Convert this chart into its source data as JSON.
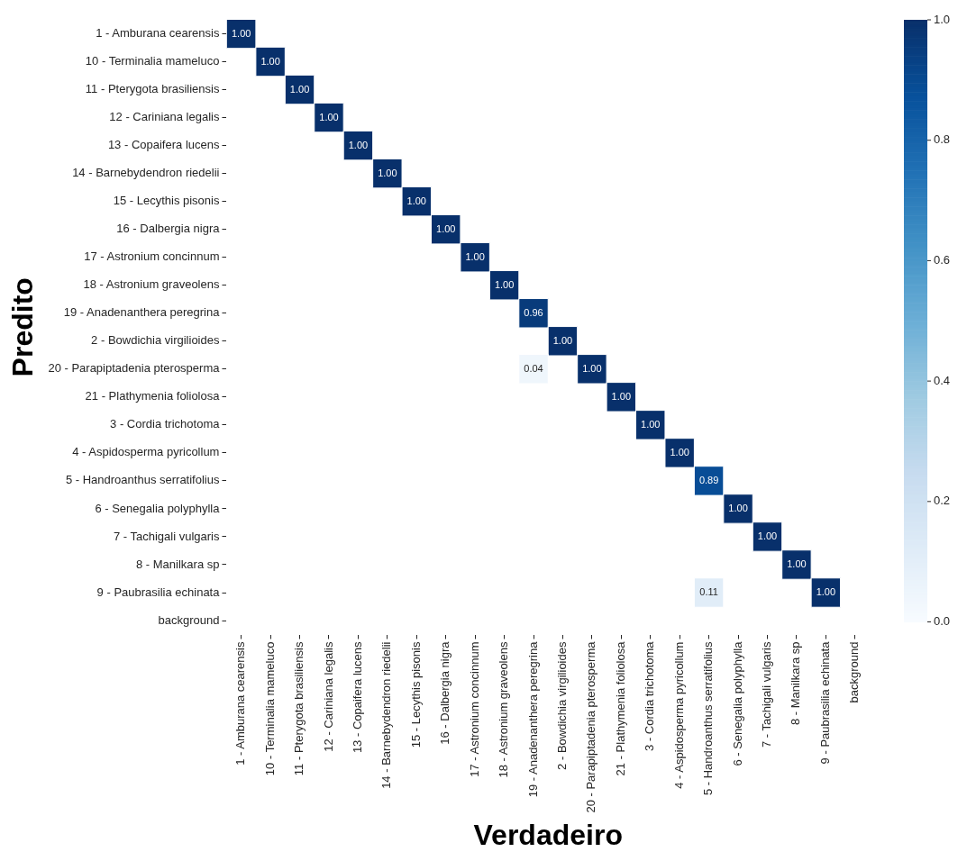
{
  "chart_data": {
    "type": "heatmap",
    "xlabel": "Verdadeiro",
    "ylabel": "Predito",
    "categories": [
      "1 - Amburana cearensis",
      "10 - Terminalia mameluco",
      "11 - Pterygota brasiliensis",
      "12 - Cariniana legalis",
      "13 - Copaifera lucens",
      "14 - Barnebydendron riedelii",
      "15 - Lecythis pisonis",
      "16 - Dalbergia nigra",
      "17 - Astronium concinnum",
      "18 - Astronium graveolens",
      "19 - Anadenanthera peregrina",
      "2 - Bowdichia virgilioides",
      "20 - Parapiptadenia pterosperma",
      "21 - Plathymenia foliolosa",
      "3 - Cordia trichotoma",
      "4 - Aspidosperma pyricollum",
      "5 - Handroanthus serratifolius",
      "6 - Senegalia polyphylla",
      "7 - Tachigali vulgaris",
      "8 - Manilkara sp",
      "9 - Paubrasilia echinata",
      "background"
    ],
    "y_categories": [
      "1 - Amburana cearensis",
      "10 - Terminalia mameluco",
      "11 - Pterygota brasiliensis",
      "12 - Cariniana legalis",
      "13 - Copaifera lucens",
      "14 - Barnebydendron riedelii",
      "15 - Lecythis pisonis",
      "16 - Dalbergia nigra",
      "17 - Astronium concinnum",
      "18 - Astronium graveolens",
      "19 - Anadenanthera peregrina",
      "2 - Bowdichia virgilioides",
      "20 - Parapiptadenia pterosperma",
      "21 - Plathymenia foliolosa",
      "3 - Cordia trichotoma",
      "4 - Aspidosperma pyricollum",
      "5 - Handroanthus serratifolius",
      "6 - Senegalia polyphylla",
      "7 - Tachigali vulgaris",
      "8 - Manilkara sp",
      "9 - Paubrasilia echinata",
      "background"
    ],
    "cells": [
      [
        1,
        null,
        null,
        null,
        null,
        null,
        null,
        null,
        null,
        null,
        null,
        null,
        null,
        null,
        null,
        null,
        null,
        null,
        null,
        null,
        null,
        null
      ],
      [
        null,
        1,
        null,
        null,
        null,
        null,
        null,
        null,
        null,
        null,
        null,
        null,
        null,
        null,
        null,
        null,
        null,
        null,
        null,
        null,
        null,
        null
      ],
      [
        null,
        null,
        1,
        null,
        null,
        null,
        null,
        null,
        null,
        null,
        null,
        null,
        null,
        null,
        null,
        null,
        null,
        null,
        null,
        null,
        null,
        null
      ],
      [
        null,
        null,
        null,
        1,
        null,
        null,
        null,
        null,
        null,
        null,
        null,
        null,
        null,
        null,
        null,
        null,
        null,
        null,
        null,
        null,
        null,
        null
      ],
      [
        null,
        null,
        null,
        null,
        1,
        null,
        null,
        null,
        null,
        null,
        null,
        null,
        null,
        null,
        null,
        null,
        null,
        null,
        null,
        null,
        null,
        null
      ],
      [
        null,
        null,
        null,
        null,
        null,
        1,
        null,
        null,
        null,
        null,
        null,
        null,
        null,
        null,
        null,
        null,
        null,
        null,
        null,
        null,
        null,
        null
      ],
      [
        null,
        null,
        null,
        null,
        null,
        null,
        1,
        null,
        null,
        null,
        null,
        null,
        null,
        null,
        null,
        null,
        null,
        null,
        null,
        null,
        null,
        null
      ],
      [
        null,
        null,
        null,
        null,
        null,
        null,
        null,
        1,
        null,
        null,
        null,
        null,
        null,
        null,
        null,
        null,
        null,
        null,
        null,
        null,
        null,
        null
      ],
      [
        null,
        null,
        null,
        null,
        null,
        null,
        null,
        null,
        1,
        null,
        null,
        null,
        null,
        null,
        null,
        null,
        null,
        null,
        null,
        null,
        null,
        null
      ],
      [
        null,
        null,
        null,
        null,
        null,
        null,
        null,
        null,
        null,
        1,
        null,
        null,
        null,
        null,
        null,
        null,
        null,
        null,
        null,
        null,
        null,
        null
      ],
      [
        null,
        null,
        null,
        null,
        null,
        null,
        null,
        null,
        null,
        null,
        0.96,
        null,
        null,
        null,
        null,
        null,
        null,
        null,
        null,
        null,
        null,
        null
      ],
      [
        null,
        null,
        null,
        null,
        null,
        null,
        null,
        null,
        null,
        null,
        null,
        1,
        null,
        null,
        null,
        null,
        null,
        null,
        null,
        null,
        null,
        null
      ],
      [
        null,
        null,
        null,
        null,
        null,
        null,
        null,
        null,
        null,
        null,
        0.04,
        null,
        1,
        null,
        null,
        null,
        null,
        null,
        null,
        null,
        null,
        null
      ],
      [
        null,
        null,
        null,
        null,
        null,
        null,
        null,
        null,
        null,
        null,
        null,
        null,
        null,
        1,
        null,
        null,
        null,
        null,
        null,
        null,
        null,
        null
      ],
      [
        null,
        null,
        null,
        null,
        null,
        null,
        null,
        null,
        null,
        null,
        null,
        null,
        null,
        null,
        1,
        null,
        null,
        null,
        null,
        null,
        null,
        null
      ],
      [
        null,
        null,
        null,
        null,
        null,
        null,
        null,
        null,
        null,
        null,
        null,
        null,
        null,
        null,
        null,
        1,
        null,
        null,
        null,
        null,
        null,
        null
      ],
      [
        null,
        null,
        null,
        null,
        null,
        null,
        null,
        null,
        null,
        null,
        null,
        null,
        null,
        null,
        null,
        null,
        0.89,
        null,
        null,
        null,
        null,
        null
      ],
      [
        null,
        null,
        null,
        null,
        null,
        null,
        null,
        null,
        null,
        null,
        null,
        null,
        null,
        null,
        null,
        null,
        null,
        1,
        null,
        null,
        null,
        null
      ],
      [
        null,
        null,
        null,
        null,
        null,
        null,
        null,
        null,
        null,
        null,
        null,
        null,
        null,
        null,
        null,
        null,
        null,
        null,
        1,
        null,
        null,
        null
      ],
      [
        null,
        null,
        null,
        null,
        null,
        null,
        null,
        null,
        null,
        null,
        null,
        null,
        null,
        null,
        null,
        null,
        null,
        null,
        null,
        1,
        null,
        null
      ],
      [
        null,
        null,
        null,
        null,
        null,
        null,
        null,
        null,
        null,
        null,
        null,
        null,
        null,
        null,
        null,
        null,
        0.11,
        null,
        null,
        null,
        1,
        null
      ],
      [
        null,
        null,
        null,
        null,
        null,
        null,
        null,
        null,
        null,
        null,
        null,
        null,
        null,
        null,
        null,
        null,
        null,
        null,
        null,
        null,
        null,
        null
      ]
    ],
    "cell_labels": [
      [
        "1.00",
        null,
        null,
        null,
        null,
        null,
        null,
        null,
        null,
        null,
        null,
        null,
        null,
        null,
        null,
        null,
        null,
        null,
        null,
        null,
        null,
        null
      ],
      [
        null,
        "1.00",
        null,
        null,
        null,
        null,
        null,
        null,
        null,
        null,
        null,
        null,
        null,
        null,
        null,
        null,
        null,
        null,
        null,
        null,
        null,
        null
      ],
      [
        null,
        null,
        "1.00",
        null,
        null,
        null,
        null,
        null,
        null,
        null,
        null,
        null,
        null,
        null,
        null,
        null,
        null,
        null,
        null,
        null,
        null,
        null
      ],
      [
        null,
        null,
        null,
        "1.00",
        null,
        null,
        null,
        null,
        null,
        null,
        null,
        null,
        null,
        null,
        null,
        null,
        null,
        null,
        null,
        null,
        null,
        null
      ],
      [
        null,
        null,
        null,
        null,
        "1.00",
        null,
        null,
        null,
        null,
        null,
        null,
        null,
        null,
        null,
        null,
        null,
        null,
        null,
        null,
        null,
        null,
        null
      ],
      [
        null,
        null,
        null,
        null,
        null,
        "1.00",
        null,
        null,
        null,
        null,
        null,
        null,
        null,
        null,
        null,
        null,
        null,
        null,
        null,
        null,
        null,
        null
      ],
      [
        null,
        null,
        null,
        null,
        null,
        null,
        "1.00",
        null,
        null,
        null,
        null,
        null,
        null,
        null,
        null,
        null,
        null,
        null,
        null,
        null,
        null,
        null
      ],
      [
        null,
        null,
        null,
        null,
        null,
        null,
        null,
        "1.00",
        null,
        null,
        null,
        null,
        null,
        null,
        null,
        null,
        null,
        null,
        null,
        null,
        null,
        null
      ],
      [
        null,
        null,
        null,
        null,
        null,
        null,
        null,
        null,
        "1.00",
        null,
        null,
        null,
        null,
        null,
        null,
        null,
        null,
        null,
        null,
        null,
        null,
        null
      ],
      [
        null,
        null,
        null,
        null,
        null,
        null,
        null,
        null,
        null,
        "1.00",
        null,
        null,
        null,
        null,
        null,
        null,
        null,
        null,
        null,
        null,
        null,
        null
      ],
      [
        null,
        null,
        null,
        null,
        null,
        null,
        null,
        null,
        null,
        null,
        "0.96",
        null,
        null,
        null,
        null,
        null,
        null,
        null,
        null,
        null,
        null,
        null
      ],
      [
        null,
        null,
        null,
        null,
        null,
        null,
        null,
        null,
        null,
        null,
        null,
        "1.00",
        null,
        null,
        null,
        null,
        null,
        null,
        null,
        null,
        null,
        null
      ],
      [
        null,
        null,
        null,
        null,
        null,
        null,
        null,
        null,
        null,
        null,
        "0.04",
        null,
        "1.00",
        null,
        null,
        null,
        null,
        null,
        null,
        null,
        null,
        null
      ],
      [
        null,
        null,
        null,
        null,
        null,
        null,
        null,
        null,
        null,
        null,
        null,
        null,
        null,
        "1.00",
        null,
        null,
        null,
        null,
        null,
        null,
        null,
        null
      ],
      [
        null,
        null,
        null,
        null,
        null,
        null,
        null,
        null,
        null,
        null,
        null,
        null,
        null,
        null,
        "1.00",
        null,
        null,
        null,
        null,
        null,
        null,
        null
      ],
      [
        null,
        null,
        null,
        null,
        null,
        null,
        null,
        null,
        null,
        null,
        null,
        null,
        null,
        null,
        null,
        "1.00",
        null,
        null,
        null,
        null,
        null,
        null
      ],
      [
        null,
        null,
        null,
        null,
        null,
        null,
        null,
        null,
        null,
        null,
        null,
        null,
        null,
        null,
        null,
        null,
        "0.89",
        null,
        null,
        null,
        null,
        null
      ],
      [
        null,
        null,
        null,
        null,
        null,
        null,
        null,
        null,
        null,
        null,
        null,
        null,
        null,
        null,
        null,
        null,
        null,
        "1.00",
        null,
        null,
        null,
        null
      ],
      [
        null,
        null,
        null,
        null,
        null,
        null,
        null,
        null,
        null,
        null,
        null,
        null,
        null,
        null,
        null,
        null,
        null,
        null,
        "1.00",
        null,
        null,
        null
      ],
      [
        null,
        null,
        null,
        null,
        null,
        null,
        null,
        null,
        null,
        null,
        null,
        null,
        null,
        null,
        null,
        null,
        null,
        null,
        null,
        "1.00",
        null,
        null
      ],
      [
        null,
        null,
        null,
        null,
        null,
        null,
        null,
        null,
        null,
        null,
        null,
        null,
        null,
        null,
        null,
        null,
        "0.11",
        null,
        null,
        null,
        "1.00",
        null
      ],
      [
        null,
        null,
        null,
        null,
        null,
        null,
        null,
        null,
        null,
        null,
        null,
        null,
        null,
        null,
        null,
        null,
        null,
        null,
        null,
        null,
        null,
        null
      ]
    ],
    "clim": [
      0,
      1
    ],
    "cticks": [
      {
        "value": 0,
        "label": "0.0"
      },
      {
        "value": 0.2,
        "label": "0.2"
      },
      {
        "value": 0.4,
        "label": "0.4"
      },
      {
        "value": 0.6,
        "label": "0.6"
      },
      {
        "value": 0.8,
        "label": "0.8"
      },
      {
        "value": 1,
        "label": "1.0"
      }
    ]
  }
}
